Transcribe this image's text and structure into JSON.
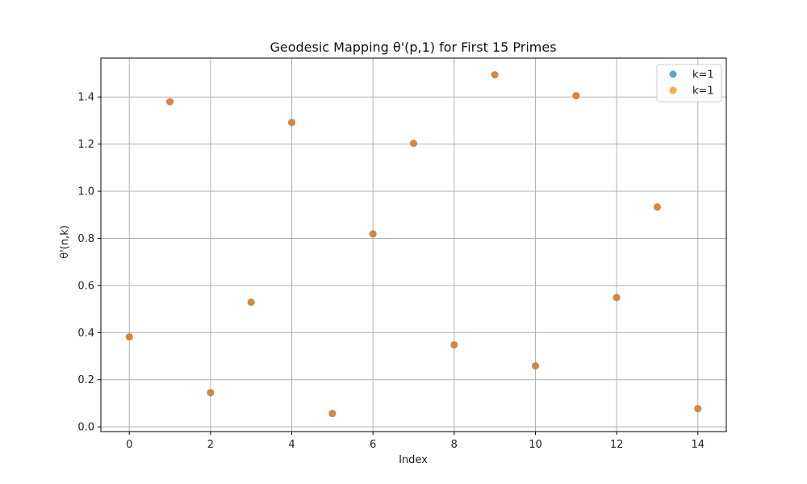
{
  "chart_data": {
    "type": "scatter",
    "title": "Geodesic Mapping θ'(p,1) for First 15 Primes",
    "xlabel": "Index",
    "ylabel": "θ'(n,k)",
    "xlim": [
      -0.7,
      14.7
    ],
    "ylim": [
      -0.02,
      1.565
    ],
    "xticks": [
      0,
      2,
      4,
      6,
      8,
      10,
      12,
      14
    ],
    "yticks": [
      0.0,
      0.2,
      0.4,
      0.6,
      0.8,
      1.0,
      1.2,
      1.4
    ],
    "grid": true,
    "legend_position": "top-right",
    "x": [
      0,
      1,
      2,
      3,
      4,
      5,
      6,
      7,
      8,
      9,
      10,
      11,
      12,
      13,
      14
    ],
    "series": [
      {
        "name": "k=1",
        "color": "#1f77b4",
        "values": [
          0.382,
          1.38,
          0.145,
          0.529,
          1.292,
          0.057,
          0.819,
          1.203,
          0.348,
          1.494,
          0.259,
          1.405,
          0.549,
          0.933,
          0.077
        ]
      },
      {
        "name": "k=1",
        "color": "#ff7f0e",
        "values": [
          0.382,
          1.38,
          0.145,
          0.529,
          1.292,
          0.057,
          0.819,
          1.203,
          0.348,
          1.494,
          0.259,
          1.405,
          0.549,
          0.933,
          0.077
        ]
      }
    ]
  }
}
